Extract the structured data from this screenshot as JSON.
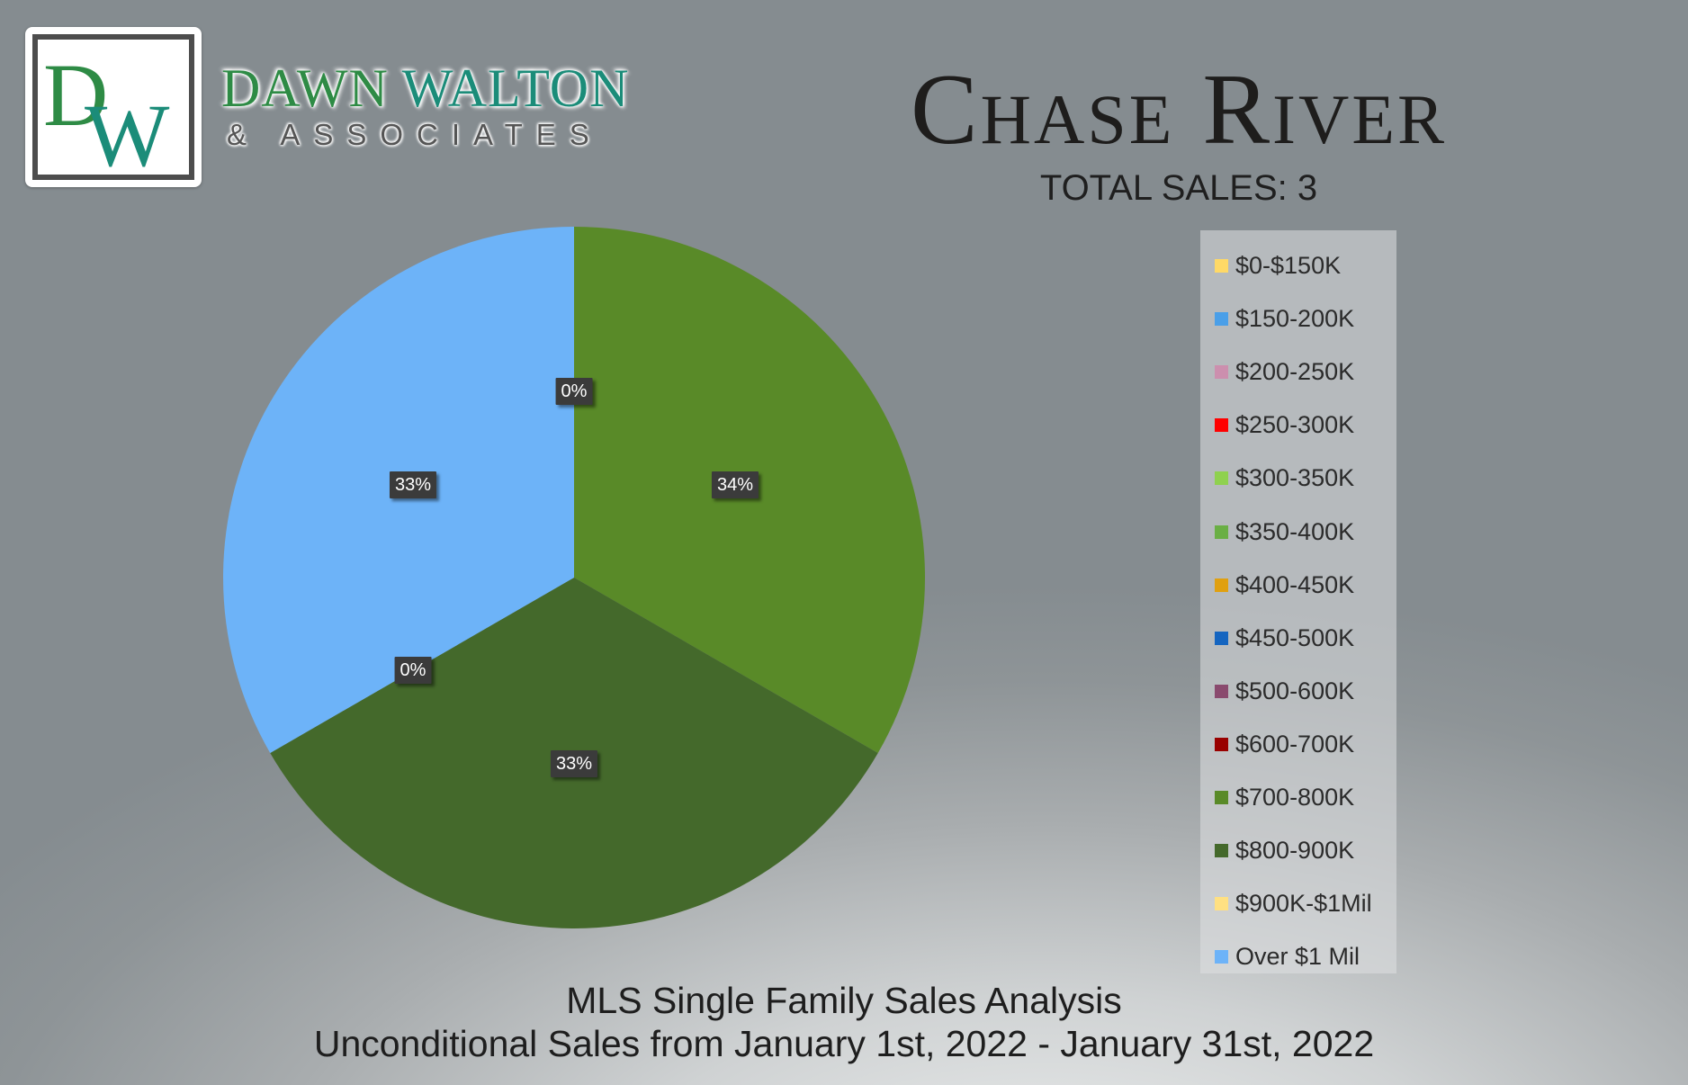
{
  "brand": {
    "logo_monogram": "DW",
    "name_first": "DAWN",
    "name_second": "WALTON",
    "sub": "& ASSOCIATES"
  },
  "header": {
    "title": "Chase River",
    "total_sales": "TOTAL SALES: 3"
  },
  "footer": {
    "line1": "MLS Single Family Sales Analysis",
    "line2": "Unconditional Sales from January 1st, 2022 - January 31st, 2022"
  },
  "chart_data": {
    "type": "pie",
    "title": "Chase River",
    "categories": [
      "$0-$150K",
      "$150-200K",
      "$200-250K",
      "$250-300K",
      "$300-350K",
      "$350-400K",
      "$400-450K",
      "$450-500K",
      "$500-600K",
      "$600-700K",
      "$700-800K",
      "$800-900K",
      "$900K-$1Mil",
      "Over $1 Mil"
    ],
    "values": [
      0,
      0,
      0,
      0,
      0,
      0,
      0,
      0,
      0,
      0,
      1,
      1,
      0,
      1
    ],
    "colors": [
      "#ffd966",
      "#4a9fe8",
      "#cc8fae",
      "#ff0000",
      "#8fd14f",
      "#6aaf45",
      "#e0a010",
      "#1565c0",
      "#8a4a6e",
      "#990000",
      "#598a28",
      "#44692b",
      "#ffe082",
      "#6db3f8"
    ],
    "data_labels": [
      {
        "category": "$700-800K",
        "text": "34%"
      },
      {
        "category": "$800-900K",
        "text": "33%"
      },
      {
        "category": "Over $1 Mil",
        "text": "33%"
      },
      {
        "category": "$900K-$1Mil",
        "text": "0%"
      },
      {
        "category": "$0-$150K",
        "text": "0%"
      }
    ],
    "legend_placement": "right"
  }
}
